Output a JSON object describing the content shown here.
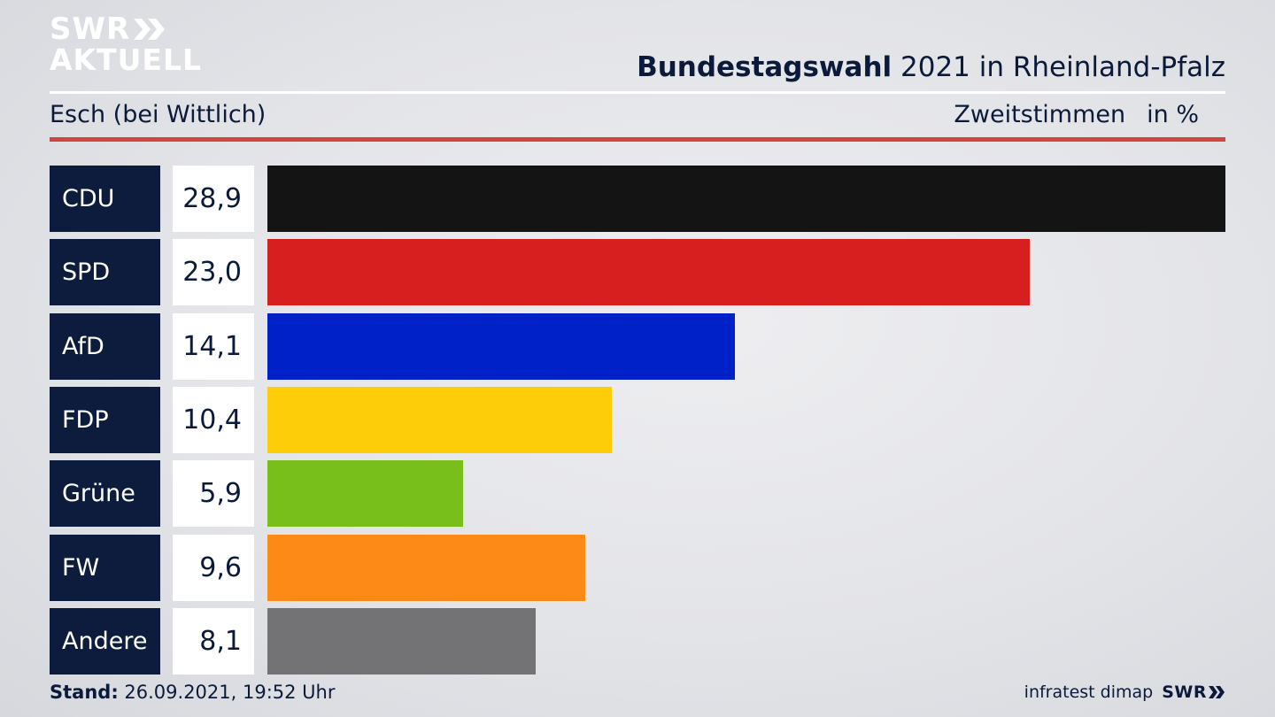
{
  "logo": {
    "line1": "SWR",
    "line2": "AKTUELL"
  },
  "header": {
    "title_bold": "Bundestagswahl",
    "title_rest": " 2021 in Rheinland-Pfalz",
    "subtitle": "Esch (bei Wittlich)",
    "metric": "Zweitstimmen",
    "unit": "in %"
  },
  "chart_data": {
    "type": "bar",
    "orientation": "horizontal",
    "categories": [
      "CDU",
      "SPD",
      "AfD",
      "FDP",
      "Grüne",
      "FW",
      "Andere"
    ],
    "values": [
      28.9,
      23.0,
      14.1,
      10.4,
      5.9,
      9.6,
      8.1
    ],
    "value_labels": [
      "28,9",
      "23,0",
      "14,1",
      "10,4",
      "5,9",
      "9,6",
      "8,1"
    ],
    "colors": [
      "#141414",
      "#d81f1f",
      "#0021c8",
      "#fdcd0a",
      "#78bf1c",
      "#fd8a17",
      "#737375"
    ],
    "xlim": [
      0,
      28.9
    ]
  },
  "footer": {
    "stand_label": "Stand:",
    "stand_value": " 26.09.2021, 19:52 Uhr",
    "source": "infratest dimap",
    "brand": "SWR"
  }
}
